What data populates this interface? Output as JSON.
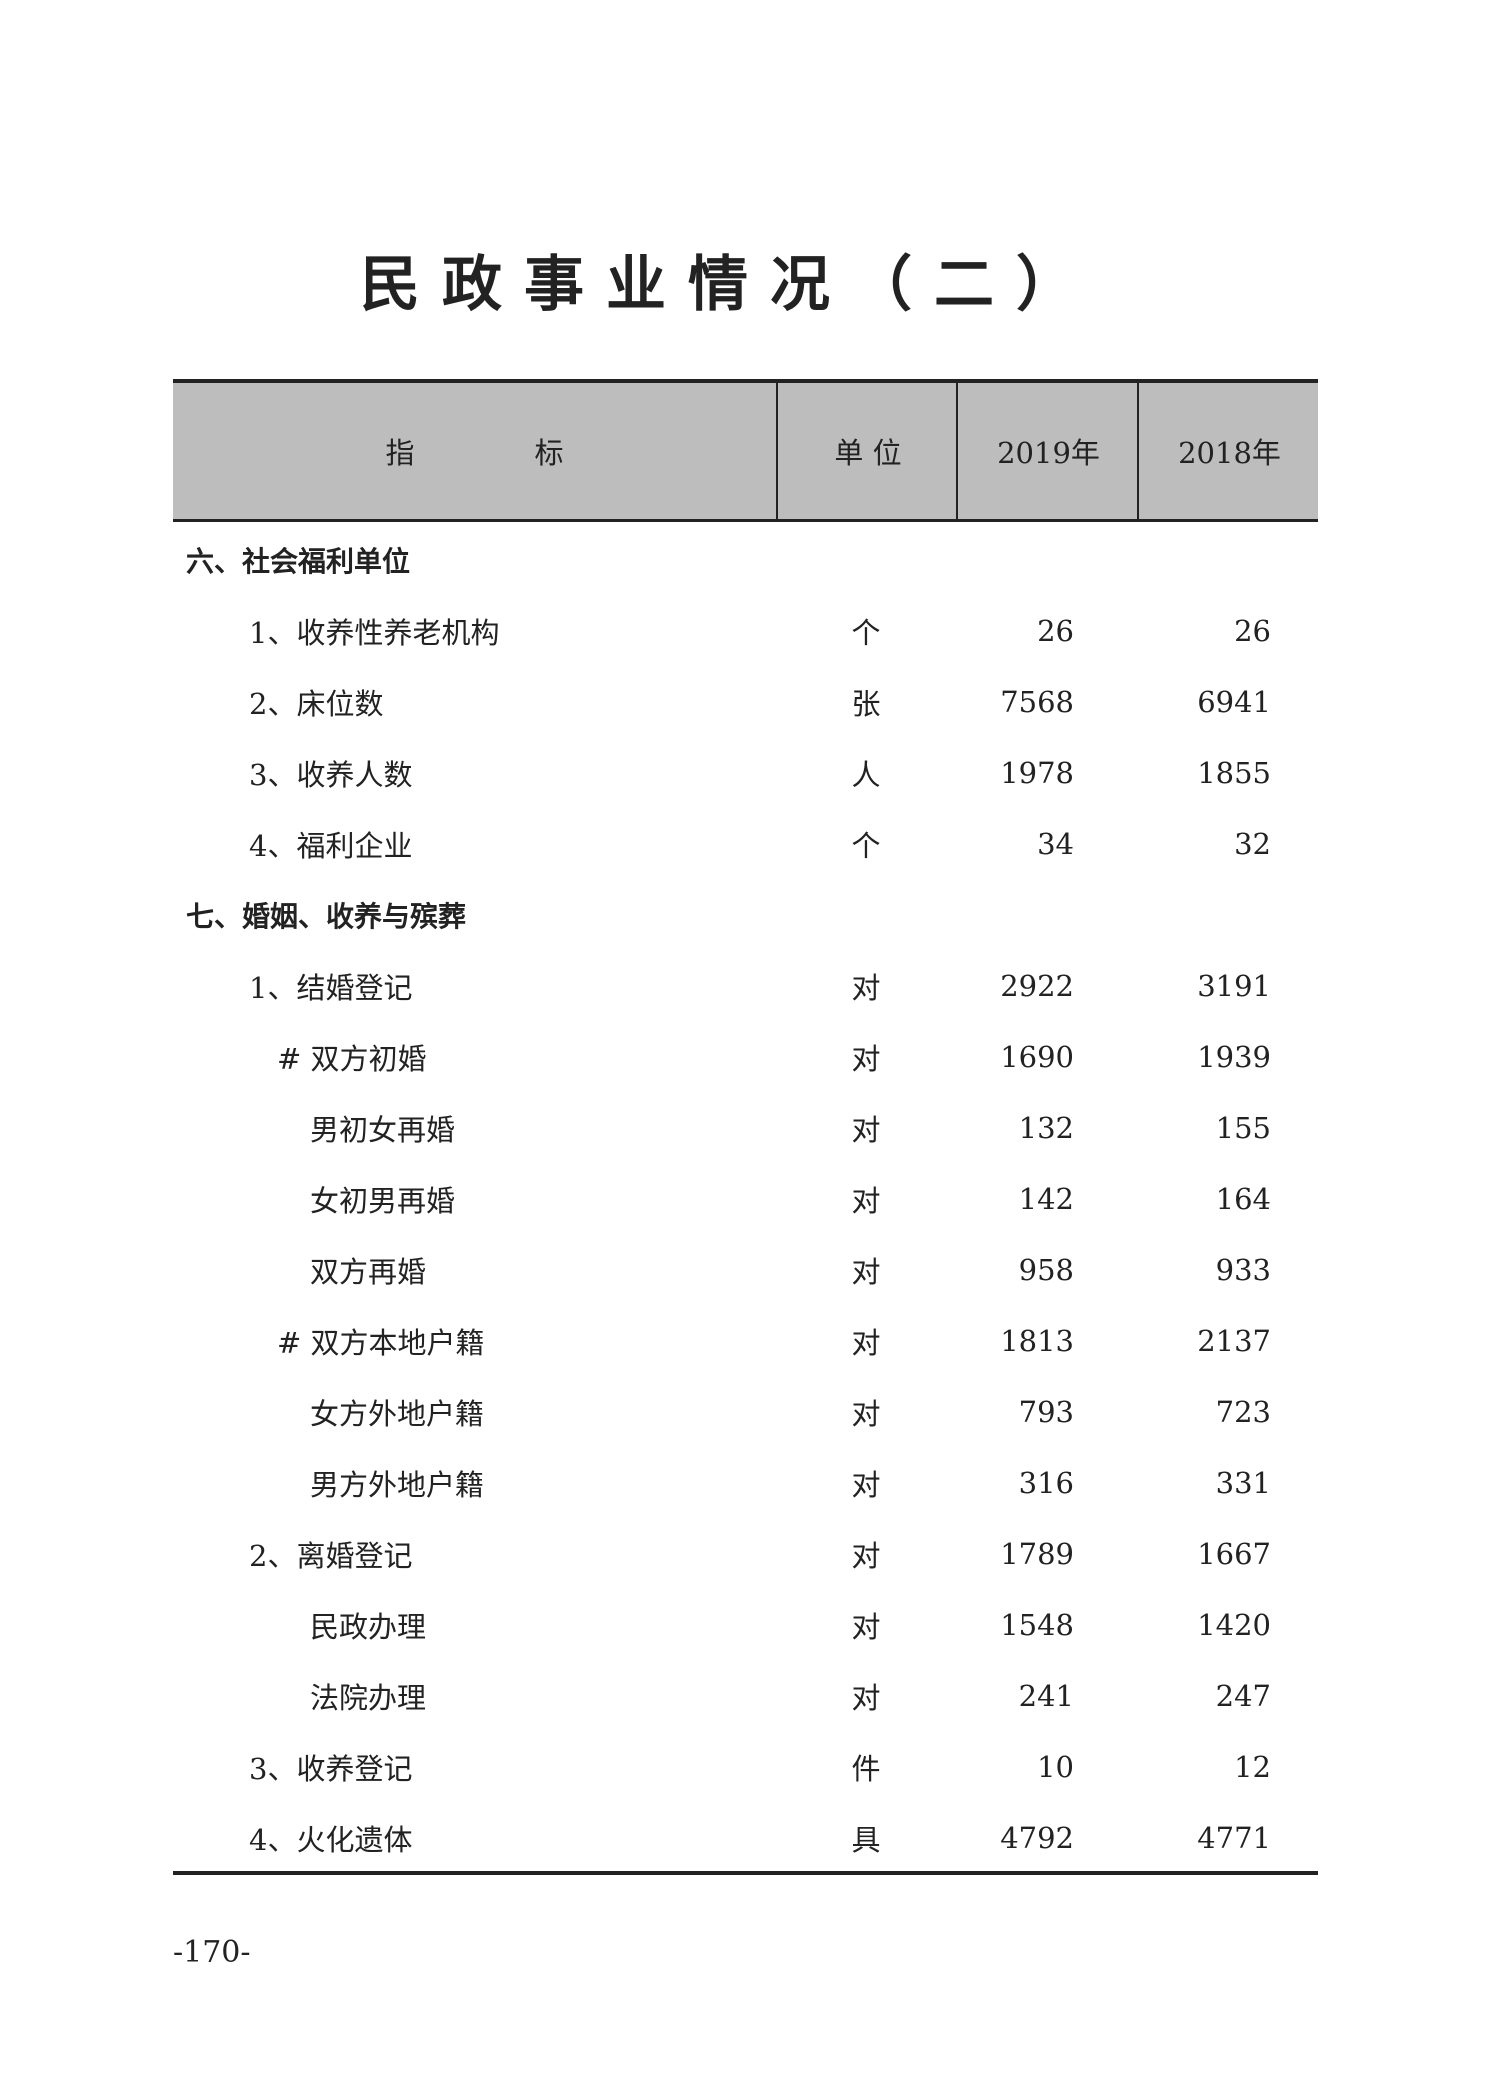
{
  "title": "民政事业情况（二）",
  "header": {
    "indicator_a": "指",
    "indicator_b": "标",
    "unit": "单 位",
    "year1": "2019年",
    "year2": "2018年"
  },
  "rows": [
    {
      "label": "六、社会福利单位",
      "level": 0,
      "unit": "",
      "v2019": "",
      "v2018": ""
    },
    {
      "label": "1、收养性养老机构",
      "level": 1,
      "unit": "个",
      "v2019": "26",
      "v2018": "26"
    },
    {
      "label": "2、床位数",
      "level": 1,
      "unit": "张",
      "v2019": "7568",
      "v2018": "6941"
    },
    {
      "label": "3、收养人数",
      "level": 1,
      "unit": "人",
      "v2019": "1978",
      "v2018": "1855"
    },
    {
      "label": "4、福利企业",
      "level": 1,
      "unit": "个",
      "v2019": "34",
      "v2018": "32"
    },
    {
      "label": "七、婚姻、收养与殡葬",
      "level": 0,
      "unit": "",
      "v2019": "",
      "v2018": ""
    },
    {
      "label": "1、结婚登记",
      "level": 1,
      "unit": "对",
      "v2019": "2922",
      "v2018": "3191"
    },
    {
      "label": "# 双方初婚",
      "level": 2,
      "unit": "对",
      "v2019": "1690",
      "v2018": "1939"
    },
    {
      "label": "男初女再婚",
      "level": 3,
      "unit": "对",
      "v2019": "132",
      "v2018": "155"
    },
    {
      "label": "女初男再婚",
      "level": 3,
      "unit": "对",
      "v2019": "142",
      "v2018": "164"
    },
    {
      "label": "双方再婚",
      "level": 3,
      "unit": "对",
      "v2019": "958",
      "v2018": "933"
    },
    {
      "label": "# 双方本地户籍",
      "level": 2,
      "unit": "对",
      "v2019": "1813",
      "v2018": "2137"
    },
    {
      "label": "女方外地户籍",
      "level": 3,
      "unit": "对",
      "v2019": "793",
      "v2018": "723"
    },
    {
      "label": "男方外地户籍",
      "level": 3,
      "unit": "对",
      "v2019": "316",
      "v2018": "331"
    },
    {
      "label": "2、离婚登记",
      "level": 1,
      "unit": "对",
      "v2019": "1789",
      "v2018": "1667"
    },
    {
      "label": "民政办理",
      "level": 3,
      "unit": "对",
      "v2019": "1548",
      "v2018": "1420"
    },
    {
      "label": "法院办理",
      "level": 3,
      "unit": "对",
      "v2019": "241",
      "v2018": "247"
    },
    {
      "label": "3、收养登记",
      "level": 1,
      "unit": "件",
      "v2019": "10",
      "v2018": "12"
    },
    {
      "label": "4、火化遗体",
      "level": 1,
      "unit": "具",
      "v2019": "4792",
      "v2018": "4771"
    }
  ],
  "page_number": "-170-"
}
